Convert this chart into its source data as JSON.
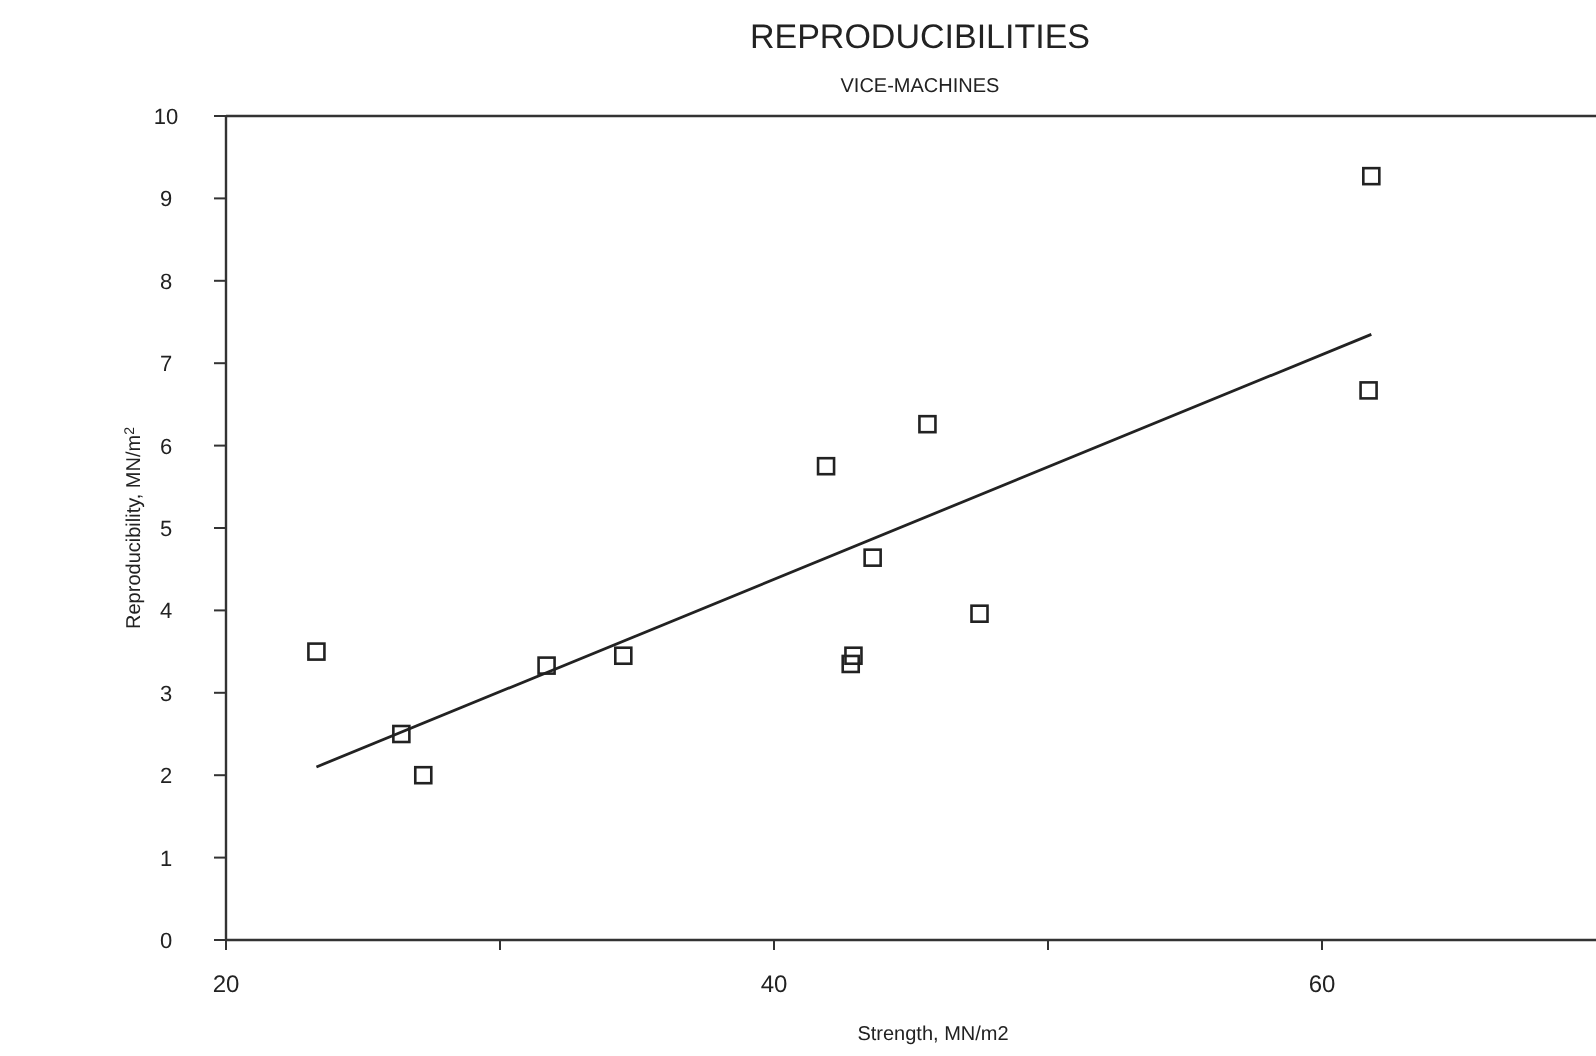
{
  "chart_data": {
    "type": "scatter",
    "title": "REPRODUCIBILITIES",
    "subtitle": "VICE-MACHINES",
    "xlabel": "Strength, MN/m2",
    "ylabel": "Reproducibility, MN/m$^{2}$",
    "xlim": [
      20,
      70
    ],
    "xticks": [
      20,
      {
        "value": 30,
        "label": null
      },
      40,
      {
        "value": 50,
        "label": null
      },
      60
    ],
    "ylim": [
      0,
      10
    ],
    "yticks": [
      0,
      1,
      2,
      3,
      4,
      5,
      6,
      7,
      8,
      9,
      10
    ],
    "grid": false,
    "series": [
      {
        "marker": "square",
        "color": "#222222",
        "x": [
          23.3,
          26.4,
          27.2,
          31.7,
          34.5,
          41.9,
          42.8,
          42.9,
          43.6,
          45.6,
          47.5,
          61.7,
          61.8
        ],
        "values": [
          3.5,
          2.5,
          2.0,
          3.33,
          3.45,
          5.75,
          3.35,
          3.45,
          4.64,
          6.26,
          3.96,
          6.67,
          9.27
        ]
      },
      {
        "type": "line",
        "color": "#222222",
        "x": [
          23.3,
          61.8
        ],
        "values": [
          2.1,
          7.35
        ]
      }
    ]
  }
}
